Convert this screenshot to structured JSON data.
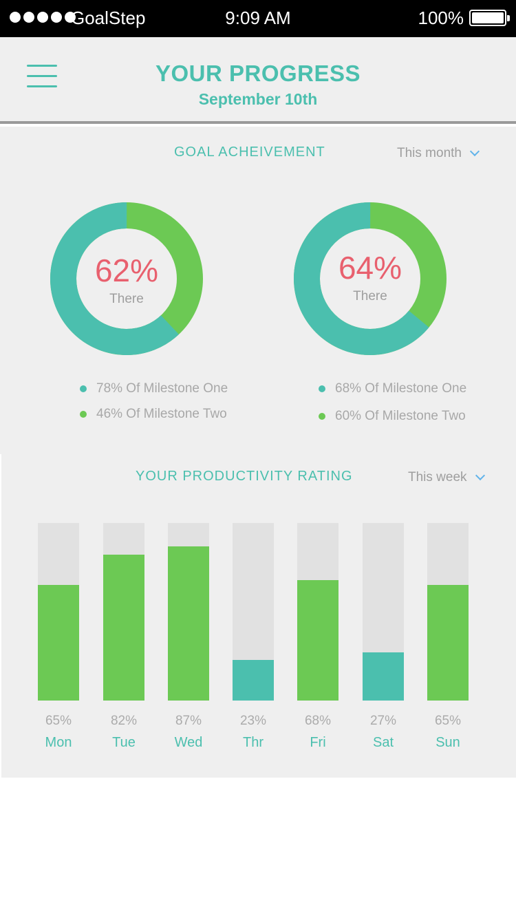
{
  "status_bar": {
    "carrier": "GoalStep",
    "time": "9:09 AM",
    "battery": "100%"
  },
  "header": {
    "title": "YOUR PROGRESS",
    "date": "September 10th",
    "menu_icon": "hamburger-menu-icon"
  },
  "goal": {
    "title": "GOAL ACHEIVEMENT",
    "period": "This month",
    "charts": [
      {
        "percent_label": "62%",
        "sub_label": "There",
        "teal_fraction": 0.62,
        "milestones": [
          {
            "label": "78% Of Milestone One",
            "color": "#4bbfae"
          },
          {
            "label": "46% Of Milestone Two",
            "color": "#6cc954"
          }
        ]
      },
      {
        "percent_label": "64%",
        "sub_label": "There",
        "teal_fraction": 0.64,
        "milestones": [
          {
            "label": "68% Of Milestone One",
            "color": "#4bbfae"
          },
          {
            "label": "60% Of Milestone Two",
            "color": "#6cc954"
          }
        ]
      }
    ]
  },
  "productivity": {
    "title": "YOUR PRODUCTIVITY RATING",
    "period": "This week",
    "days": [
      {
        "day": "Mon",
        "label": "65%",
        "value": 65,
        "color": "#6cc954"
      },
      {
        "day": "Tue",
        "label": "82%",
        "value": 82,
        "color": "#6cc954"
      },
      {
        "day": "Wed",
        "label": "87%",
        "value": 87,
        "color": "#6cc954"
      },
      {
        "day": "Thr",
        "label": "23%",
        "value": 23,
        "color": "#4bbfae"
      },
      {
        "day": "Fri",
        "label": "68%",
        "value": 68,
        "color": "#6cc954"
      },
      {
        "day": "Sat",
        "label": "27%",
        "value": 27,
        "color": "#4bbfae"
      },
      {
        "day": "Sun",
        "label": "65%",
        "value": 65,
        "color": "#6cc954"
      }
    ]
  },
  "colors": {
    "accent": "#4bbfae",
    "green": "#6cc954",
    "percent_red": "#e8606e",
    "track": "#e1e1e1"
  }
}
